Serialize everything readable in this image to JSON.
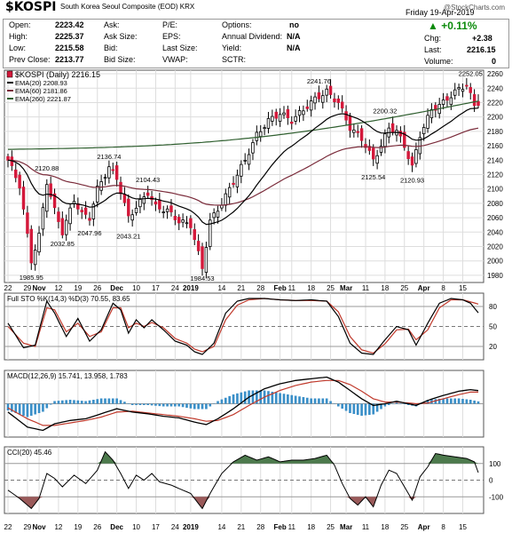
{
  "header": {
    "symbol": "$KOSPI",
    "name": "South Korea Seoul Composite (EOD)",
    "exchange": "KRX",
    "watermark": "@StockCharts.com",
    "date": "Friday  19-Apr-2019"
  },
  "quote": {
    "open_label": "Open:",
    "open": "2223.42",
    "high_label": "High:",
    "high": "2225.37",
    "low_label": "Low:",
    "low": "2215.58",
    "prev_label": "Prev Close:",
    "prev": "2213.77",
    "ask_label": "Ask:",
    "ask": "",
    "asksize_label": "Ask Size:",
    "asksize": "",
    "bid_label": "Bid:",
    "bid": "",
    "bidsize_label": "Bid Size:",
    "bidsize": "",
    "pe_label": "P/E:",
    "pe": "",
    "eps_label": "EPS:",
    "eps": "",
    "lastsize_label": "Last Size:",
    "lastsize": "",
    "vwap_label": "VWAP:",
    "vwap": "",
    "options_label": "Options:",
    "options": "no",
    "div_label": "Annual Dividend:",
    "div": "N/A",
    "yield_label": "Yield:",
    "yield": "N/A",
    "sctr_label": "SCTR:",
    "sctr": "",
    "pct_change": "+0.11%",
    "chg_label": "Chg:",
    "chg": "+2.38",
    "last_label": "Last:",
    "last": "2216.15",
    "volume_label": "Volume:",
    "volume": "0"
  },
  "colors": {
    "up": "#000000",
    "down": "#d4193b",
    "ema20": "#000000",
    "ema60": "#7a2b3a",
    "ema260": "#2f5f2f",
    "macd_hist": "#3a8fc8",
    "cci_fill_pos": "#4d7a4d",
    "cci_fill_neg": "#9a5a5a",
    "grid": "#dddddd"
  },
  "chart_data": [
    {
      "type": "candlestick",
      "panel": "price",
      "legend": [
        "$KOSPI (Daily) 2216.15",
        "EMA(20) 2208.93",
        "EMA(60) 2181.86",
        "EMA(260) 2221.87"
      ],
      "y_ticks": [
        1980,
        2000,
        2020,
        2040,
        2060,
        2080,
        2100,
        2120,
        2140,
        2160,
        2180,
        2200,
        2220,
        2240,
        2260
      ],
      "ylim": [
        1970,
        2265
      ],
      "x_tick_labels": [
        {
          "i": 0,
          "label": "22"
        },
        {
          "i": 5,
          "label": "29"
        },
        {
          "i": 8,
          "label": "Nov"
        },
        {
          "i": 13,
          "label": "12"
        },
        {
          "i": 18,
          "label": "19"
        },
        {
          "i": 23,
          "label": "26"
        },
        {
          "i": 28,
          "label": "Dec"
        },
        {
          "i": 33,
          "label": "10"
        },
        {
          "i": 38,
          "label": "17"
        },
        {
          "i": 43,
          "label": "24"
        },
        {
          "i": 47,
          "label": "2019"
        },
        {
          "i": 55,
          "label": "14"
        },
        {
          "i": 60,
          "label": "21"
        },
        {
          "i": 65,
          "label": "28"
        },
        {
          "i": 70,
          "label": "Feb"
        },
        {
          "i": 73,
          "label": "11"
        },
        {
          "i": 78,
          "label": "18"
        },
        {
          "i": 83,
          "label": "25"
        },
        {
          "i": 87,
          "label": "Mar"
        },
        {
          "i": 92,
          "label": "11"
        },
        {
          "i": 97,
          "label": "18"
        },
        {
          "i": 102,
          "label": "25"
        },
        {
          "i": 107,
          "label": "Apr"
        },
        {
          "i": 112,
          "label": "8"
        },
        {
          "i": 117,
          "label": "15"
        }
      ],
      "annotations": [
        {
          "i": 6,
          "v": 1985.95,
          "label": "1985.95",
          "pos": "below"
        },
        {
          "i": 10,
          "v": 2120.88,
          "label": "2120.88",
          "pos": "above"
        },
        {
          "i": 14,
          "v": 2032.85,
          "label": "2032.85",
          "pos": "below"
        },
        {
          "i": 21,
          "v": 2047.96,
          "label": "2047.96",
          "pos": "below"
        },
        {
          "i": 26,
          "v": 2136.74,
          "label": "2136.74",
          "pos": "above"
        },
        {
          "i": 31,
          "v": 2043.21,
          "label": "2043.21",
          "pos": "below"
        },
        {
          "i": 36,
          "v": 2104.43,
          "label": "2104.43",
          "pos": "above"
        },
        {
          "i": 50,
          "v": 1984.53,
          "label": "1984.53",
          "pos": "below"
        },
        {
          "i": 80,
          "v": 2241.76,
          "label": "2241.76",
          "pos": "above"
        },
        {
          "i": 94,
          "v": 2125.54,
          "label": "2125.54",
          "pos": "below"
        },
        {
          "i": 97,
          "v": 2200.32,
          "label": "2200.32",
          "pos": "above"
        },
        {
          "i": 104,
          "v": 2120.93,
          "label": "2120.93",
          "pos": "below"
        },
        {
          "i": 119,
          "v": 2252.05,
          "label": "2252.05",
          "pos": "above"
        }
      ],
      "close_anchors": [
        [
          0,
          2140
        ],
        [
          3,
          2105
        ],
        [
          6,
          2000
        ],
        [
          8,
          2035
        ],
        [
          10,
          2110
        ],
        [
          12,
          2070
        ],
        [
          14,
          2040
        ],
        [
          17,
          2085
        ],
        [
          19,
          2065
        ],
        [
          21,
          2060
        ],
        [
          23,
          2100
        ],
        [
          26,
          2130
        ],
        [
          28,
          2115
        ],
        [
          31,
          2060
        ],
        [
          33,
          2075
        ],
        [
          36,
          2095
        ],
        [
          38,
          2075
        ],
        [
          41,
          2070
        ],
        [
          44,
          2055
        ],
        [
          47,
          2050
        ],
        [
          50,
          1990
        ],
        [
          52,
          2055
        ],
        [
          55,
          2080
        ],
        [
          58,
          2110
        ],
        [
          61,
          2140
        ],
        [
          64,
          2175
        ],
        [
          67,
          2195
        ],
        [
          70,
          2205
        ],
        [
          73,
          2195
        ],
        [
          76,
          2210
        ],
        [
          79,
          2225
        ],
        [
          82,
          2235
        ],
        [
          85,
          2220
        ],
        [
          88,
          2185
        ],
        [
          91,
          2170
        ],
        [
          94,
          2140
        ],
        [
          96,
          2160
        ],
        [
          98,
          2185
        ],
        [
          100,
          2180
        ],
        [
          102,
          2160
        ],
        [
          104,
          2130
        ],
        [
          106,
          2175
        ],
        [
          109,
          2210
        ],
        [
          112,
          2220
        ],
        [
          115,
          2235
        ],
        [
          118,
          2245
        ],
        [
          120,
          2215
        ],
        [
          121,
          2216.15
        ]
      ],
      "candle_count": 122
    },
    {
      "type": "line",
      "panel": "stochastic",
      "legend": "Full STO %K(14,3) %D(3) 70.55, 83.65",
      "ylim": [
        0,
        100
      ],
      "y_ticks": [
        20,
        50,
        80
      ],
      "k_anchors": [
        [
          0,
          55
        ],
        [
          4,
          18
        ],
        [
          7,
          22
        ],
        [
          10,
          88
        ],
        [
          12,
          70
        ],
        [
          15,
          35
        ],
        [
          18,
          62
        ],
        [
          21,
          28
        ],
        [
          24,
          45
        ],
        [
          27,
          85
        ],
        [
          29,
          75
        ],
        [
          31,
          40
        ],
        [
          33,
          60
        ],
        [
          35,
          48
        ],
        [
          37,
          60
        ],
        [
          40,
          45
        ],
        [
          43,
          28
        ],
        [
          46,
          22
        ],
        [
          48,
          12
        ],
        [
          50,
          8
        ],
        [
          53,
          25
        ],
        [
          56,
          70
        ],
        [
          59,
          88
        ],
        [
          62,
          92
        ],
        [
          66,
          92
        ],
        [
          70,
          90
        ],
        [
          74,
          89
        ],
        [
          78,
          90
        ],
        [
          82,
          88
        ],
        [
          85,
          65
        ],
        [
          88,
          25
        ],
        [
          91,
          10
        ],
        [
          94,
          8
        ],
        [
          97,
          30
        ],
        [
          100,
          50
        ],
        [
          103,
          45
        ],
        [
          105,
          22
        ],
        [
          108,
          55
        ],
        [
          111,
          85
        ],
        [
          114,
          92
        ],
        [
          117,
          90
        ],
        [
          119,
          85
        ],
        [
          121,
          70.55
        ]
      ],
      "d_anchors": [
        [
          0,
          50
        ],
        [
          4,
          25
        ],
        [
          7,
          20
        ],
        [
          10,
          78
        ],
        [
          12,
          75
        ],
        [
          15,
          42
        ],
        [
          18,
          55
        ],
        [
          21,
          35
        ],
        [
          24,
          42
        ],
        [
          27,
          78
        ],
        [
          29,
          78
        ],
        [
          31,
          48
        ],
        [
          33,
          55
        ],
        [
          35,
          50
        ],
        [
          37,
          56
        ],
        [
          40,
          48
        ],
        [
          43,
          32
        ],
        [
          46,
          25
        ],
        [
          48,
          16
        ],
        [
          50,
          12
        ],
        [
          53,
          20
        ],
        [
          56,
          60
        ],
        [
          59,
          82
        ],
        [
          62,
          90
        ],
        [
          66,
          92
        ],
        [
          70,
          90
        ],
        [
          74,
          89
        ],
        [
          78,
          89
        ],
        [
          82,
          88
        ],
        [
          85,
          72
        ],
        [
          88,
          35
        ],
        [
          91,
          15
        ],
        [
          94,
          10
        ],
        [
          97,
          24
        ],
        [
          100,
          45
        ],
        [
          103,
          46
        ],
        [
          105,
          30
        ],
        [
          108,
          45
        ],
        [
          111,
          78
        ],
        [
          114,
          90
        ],
        [
          117,
          90
        ],
        [
          119,
          87
        ],
        [
          121,
          83.65
        ]
      ]
    },
    {
      "type": "line",
      "panel": "macd",
      "legend": [
        "MACD(12,26,9) 15.741, 13.958, 1.783"
      ],
      "macd_anchors": [
        [
          0,
          -10
        ],
        [
          5,
          -28
        ],
        [
          9,
          -32
        ],
        [
          12,
          -24
        ],
        [
          16,
          -20
        ],
        [
          20,
          -18
        ],
        [
          24,
          -12
        ],
        [
          28,
          -6
        ],
        [
          32,
          -10
        ],
        [
          36,
          -12
        ],
        [
          40,
          -15
        ],
        [
          44,
          -17
        ],
        [
          48,
          -22
        ],
        [
          51,
          -25
        ],
        [
          54,
          -18
        ],
        [
          58,
          -6
        ],
        [
          62,
          8
        ],
        [
          66,
          18
        ],
        [
          70,
          24
        ],
        [
          74,
          28
        ],
        [
          78,
          30
        ],
        [
          82,
          32
        ],
        [
          85,
          26
        ],
        [
          88,
          16
        ],
        [
          91,
          6
        ],
        [
          94,
          -2
        ],
        [
          97,
          0
        ],
        [
          100,
          3
        ],
        [
          103,
          0
        ],
        [
          105,
          -2
        ],
        [
          108,
          4
        ],
        [
          112,
          10
        ],
        [
          116,
          15
        ],
        [
          119,
          17
        ],
        [
          121,
          15.741
        ]
      ],
      "signal_anchors": [
        [
          0,
          -5
        ],
        [
          5,
          -18
        ],
        [
          9,
          -26
        ],
        [
          12,
          -26
        ],
        [
          16,
          -23
        ],
        [
          20,
          -20
        ],
        [
          24,
          -16
        ],
        [
          28,
          -10
        ],
        [
          32,
          -9
        ],
        [
          36,
          -11
        ],
        [
          40,
          -13
        ],
        [
          44,
          -15
        ],
        [
          48,
          -18
        ],
        [
          51,
          -21
        ],
        [
          54,
          -20
        ],
        [
          58,
          -13
        ],
        [
          62,
          -2
        ],
        [
          66,
          8
        ],
        [
          70,
          16
        ],
        [
          74,
          22
        ],
        [
          78,
          26
        ],
        [
          82,
          28
        ],
        [
          85,
          28
        ],
        [
          88,
          23
        ],
        [
          91,
          15
        ],
        [
          94,
          6
        ],
        [
          97,
          2
        ],
        [
          100,
          2
        ],
        [
          103,
          1
        ],
        [
          105,
          0
        ],
        [
          108,
          1
        ],
        [
          112,
          6
        ],
        [
          116,
          11
        ],
        [
          119,
          14
        ],
        [
          121,
          13.958
        ]
      ],
      "hist_note": "histogram = MACD - signal"
    },
    {
      "type": "area",
      "panel": "cci",
      "legend": "CCI(20) 45.46",
      "ylim": [
        -200,
        200
      ],
      "y_ticks": [
        -100,
        0,
        100
      ],
      "anchors": [
        [
          0,
          -60
        ],
        [
          3,
          -110
        ],
        [
          6,
          -170
        ],
        [
          8,
          -110
        ],
        [
          10,
          40
        ],
        [
          12,
          10
        ],
        [
          14,
          -40
        ],
        [
          17,
          30
        ],
        [
          20,
          -20
        ],
        [
          23,
          60
        ],
        [
          25,
          170
        ],
        [
          27,
          120
        ],
        [
          29,
          40
        ],
        [
          31,
          -50
        ],
        [
          33,
          30
        ],
        [
          35,
          0
        ],
        [
          37,
          40
        ],
        [
          39,
          -10
        ],
        [
          42,
          -30
        ],
        [
          45,
          -60
        ],
        [
          47,
          -80
        ],
        [
          50,
          -170
        ],
        [
          52,
          -80
        ],
        [
          55,
          40
        ],
        [
          58,
          110
        ],
        [
          61,
          150
        ],
        [
          64,
          120
        ],
        [
          67,
          140
        ],
        [
          70,
          110
        ],
        [
          73,
          120
        ],
        [
          76,
          120
        ],
        [
          79,
          130
        ],
        [
          82,
          150
        ],
        [
          84,
          90
        ],
        [
          86,
          -20
        ],
        [
          88,
          -110
        ],
        [
          90,
          -150
        ],
        [
          92,
          -100
        ],
        [
          94,
          -160
        ],
        [
          96,
          -30
        ],
        [
          98,
          60
        ],
        [
          100,
          40
        ],
        [
          102,
          -40
        ],
        [
          104,
          -120
        ],
        [
          106,
          20
        ],
        [
          108,
          80
        ],
        [
          110,
          160
        ],
        [
          112,
          150
        ],
        [
          115,
          140
        ],
        [
          118,
          130
        ],
        [
          120,
          110
        ],
        [
          121,
          45.46
        ]
      ]
    }
  ],
  "panels_legend": {
    "stochastic": "Full STO %K(14,3) %D(3) 70.55, 83.65",
    "macd": "MACD(12,26,9) 15.741, 13.958, 1.783",
    "cci": "CCI(20) 45.46"
  }
}
